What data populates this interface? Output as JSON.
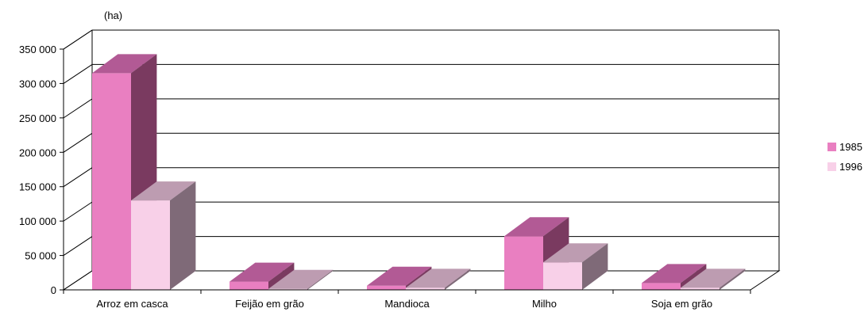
{
  "chart_data": {
    "type": "bar",
    "unit_label": "(ha)",
    "categories": [
      "Arroz em casca",
      "Feijão em grão",
      "Mandioca",
      "Milho",
      "Soja em grão"
    ],
    "series": [
      {
        "name": "1985",
        "values": [
          315000,
          12000,
          6000,
          78000,
          10000
        ]
      },
      {
        "name": "1996",
        "values": [
          130000,
          1500,
          3000,
          40000,
          3000
        ]
      }
    ],
    "ylim": [
      0,
      350000
    ],
    "yticks": [
      0,
      50000,
      100000,
      150000,
      200000,
      250000,
      300000,
      350000
    ],
    "ytick_labels": [
      "0",
      "50 000",
      "100 000",
      "150 000",
      "200 000",
      "250 000",
      "300 000",
      "350 000"
    ],
    "grid": true,
    "legend_position": "right",
    "colors": {
      "1985": {
        "front": "#e97fc1",
        "top": "#b25a95",
        "side": "#7a3a60"
      },
      "1996": {
        "front": "#f8d0e8",
        "top": "#bd9cb1",
        "side": "#7f6a78"
      }
    }
  }
}
